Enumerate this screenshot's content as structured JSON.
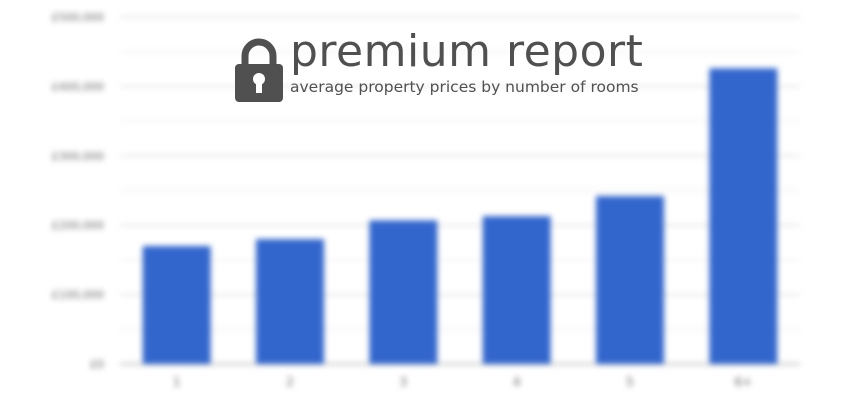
{
  "overlay": {
    "title": "premium report",
    "subtitle": "average property prices by number of rooms",
    "icon": "lock-icon",
    "color": "#505050"
  },
  "chart_data": {
    "type": "bar",
    "categories": [
      "1",
      "2",
      "3",
      "4",
      "5",
      "6+"
    ],
    "values": [
      170000,
      180000,
      207000,
      213000,
      242000,
      426000
    ],
    "y_ticks": [
      "£0",
      "£100,000",
      "£200,000",
      "£300,000",
      "£400,000",
      "£500,000"
    ],
    "ylim": [
      0,
      500000
    ],
    "grid": true,
    "bar_color": "#3366cc",
    "title": "",
    "xlabel": "",
    "ylabel": ""
  }
}
